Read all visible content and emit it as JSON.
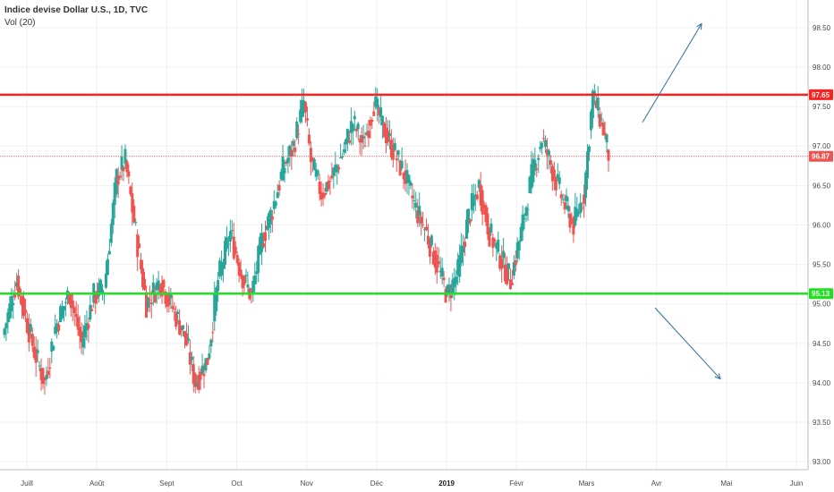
{
  "header": {
    "title": "Indice devise Dollar U.S., 1D, TVC",
    "subtitle": "Vol (20)"
  },
  "colors": {
    "up": "#26a69a",
    "down": "#ef5350",
    "resistance": "#ff2020",
    "support": "#22e022",
    "arrow": "#2a6f97",
    "grid": "#eef0f3",
    "current_line": "#ef5350"
  },
  "chart_data": {
    "type": "candlestick",
    "title": "Indice devise Dollar U.S., 1D, TVC",
    "subtitle": "Vol (20)",
    "y_ticks": [
      "93.00",
      "93.50",
      "94.00",
      "94.50",
      "95.00",
      "95.50",
      "96.00",
      "96.50",
      "97.00",
      "97.50",
      "98.00",
      "98.50"
    ],
    "y_range": [
      92.9,
      98.85
    ],
    "x_ticks": [
      {
        "label": "Juill",
        "bold": false
      },
      {
        "label": "Août",
        "bold": false
      },
      {
        "label": "Sept",
        "bold": false
      },
      {
        "label": "Oct",
        "bold": false
      },
      {
        "label": "Nov",
        "bold": false
      },
      {
        "label": "Déc",
        "bold": false
      },
      {
        "label": "2019",
        "bold": true
      },
      {
        "label": "Févr",
        "bold": false
      },
      {
        "label": "Mars",
        "bold": false
      },
      {
        "label": "Avr",
        "bold": false
      },
      {
        "label": "Mai",
        "bold": false
      },
      {
        "label": "Juin",
        "bold": false
      }
    ],
    "levels": {
      "resistance": {
        "value": 97.65,
        "label": "97.65"
      },
      "support": {
        "value": 95.13,
        "label": "95.13"
      },
      "last_price": {
        "value": 96.87,
        "label": "96.87"
      }
    },
    "arrows": [
      {
        "direction": "up",
        "from": 97.3,
        "to": 98.55
      },
      {
        "direction": "down",
        "from": 94.95,
        "to": 94.05
      }
    ],
    "price_path": [
      [
        0,
        94.6
      ],
      [
        8,
        95.3
      ],
      [
        18,
        94.4
      ],
      [
        24,
        94.0
      ],
      [
        30,
        94.7
      ],
      [
        38,
        95.15
      ],
      [
        45,
        94.5
      ],
      [
        52,
        95.1
      ],
      [
        58,
        95.2
      ],
      [
        65,
        96.6
      ],
      [
        70,
        96.8
      ],
      [
        76,
        95.9
      ],
      [
        82,
        95.0
      ],
      [
        90,
        95.3
      ],
      [
        96,
        95.0
      ],
      [
        104,
        94.6
      ],
      [
        110,
        94.0
      ],
      [
        117,
        94.3
      ],
      [
        123,
        95.3
      ],
      [
        130,
        95.9
      ],
      [
        136,
        95.4
      ],
      [
        142,
        95.1
      ],
      [
        148,
        95.8
      ],
      [
        154,
        96.2
      ],
      [
        160,
        96.7
      ],
      [
        166,
        97.0
      ],
      [
        172,
        97.55
      ],
      [
        176,
        96.8
      ],
      [
        182,
        96.4
      ],
      [
        188,
        96.6
      ],
      [
        194,
        96.9
      ],
      [
        200,
        97.3
      ],
      [
        206,
        97.0
      ],
      [
        212,
        97.55
      ],
      [
        218,
        97.2
      ],
      [
        224,
        96.9
      ],
      [
        230,
        96.6
      ],
      [
        236,
        96.2
      ],
      [
        242,
        95.9
      ],
      [
        248,
        95.5
      ],
      [
        254,
        95.1
      ],
      [
        260,
        95.4
      ],
      [
        266,
        96.1
      ],
      [
        272,
        96.5
      ],
      [
        278,
        95.9
      ],
      [
        284,
        95.6
      ],
      [
        290,
        95.3
      ],
      [
        296,
        95.9
      ],
      [
        302,
        96.6
      ],
      [
        308,
        97.1
      ],
      [
        314,
        96.7
      ],
      [
        320,
        96.3
      ],
      [
        326,
        96.0
      ],
      [
        332,
        96.4
      ],
      [
        337,
        97.65
      ],
      [
        342,
        97.3
      ],
      [
        346,
        96.9
      ]
    ]
  }
}
